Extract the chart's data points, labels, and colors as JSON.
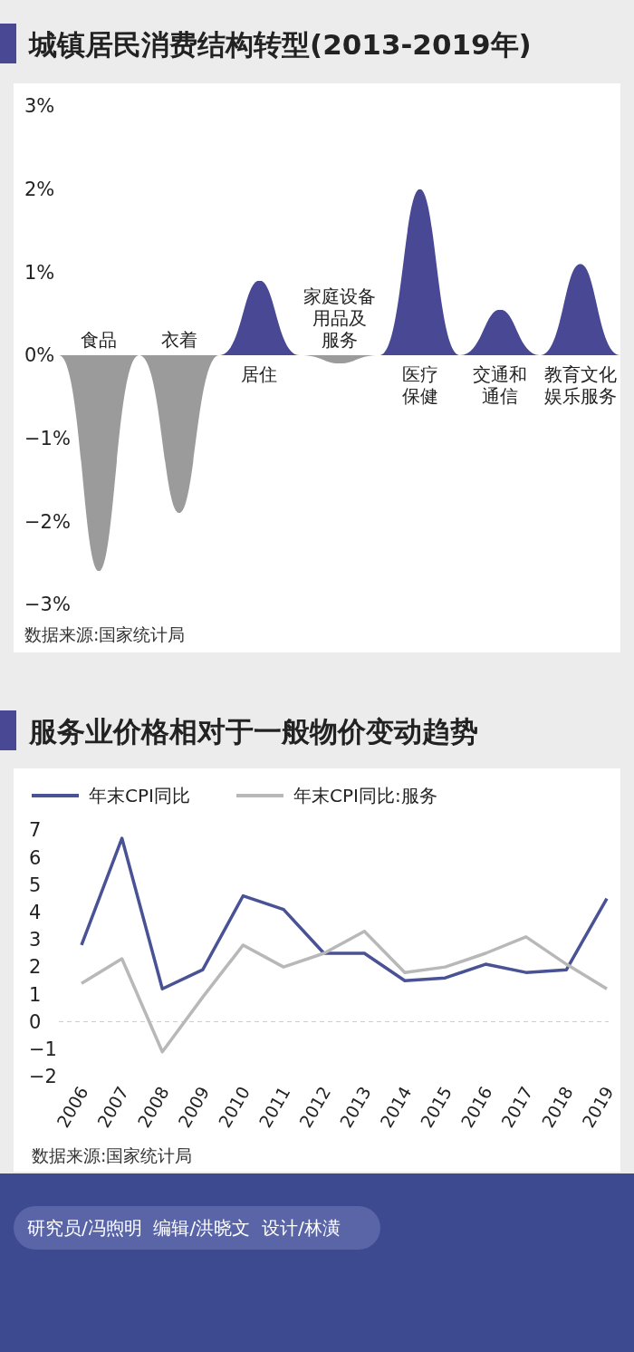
{
  "chart_data": [
    {
      "type": "bar",
      "title": "城镇居民消费结构转型(2013-2019年)",
      "categories": [
        "食品",
        "衣着",
        "居住",
        "家庭设备用品及服务",
        "医疗保健",
        "交通和通信",
        "教育文化娱乐服务"
      ],
      "values": [
        -2.6,
        -1.9,
        0.9,
        -0.1,
        2.0,
        0.55,
        1.1
      ],
      "colors": [
        "#9b9b9b",
        "#9b9b9b",
        "#484895",
        "#9b9b9b",
        "#484895",
        "#484895",
        "#484895"
      ],
      "ylim": [
        -3,
        3
      ],
      "yticks": [
        {
          "value": 3,
          "label": "3%"
        },
        {
          "value": 2,
          "label": "2%"
        },
        {
          "value": 1,
          "label": "1%"
        },
        {
          "value": 0,
          "label": "0%"
        },
        {
          "value": -1,
          "label": "−1%"
        },
        {
          "value": -2,
          "label": "−2%"
        },
        {
          "value": -3,
          "label": "−3%"
        }
      ],
      "annotations": [
        "数据来源:国家统计局"
      ]
    },
    {
      "type": "line",
      "title": "服务业价格相对于一般物价变动趋势",
      "categories": [
        "2006",
        "2007",
        "2008",
        "2009",
        "2010",
        "2011",
        "2012",
        "2013",
        "2014",
        "2015",
        "2016",
        "2017",
        "2018",
        "2019"
      ],
      "series": [
        {
          "name": "年末CPI同比",
          "color": "#4a5296",
          "values": [
            2.8,
            6.7,
            1.2,
            1.9,
            4.6,
            4.1,
            2.5,
            2.5,
            1.5,
            1.6,
            2.1,
            1.8,
            1.9,
            4.5
          ]
        },
        {
          "name": "年末CPI同比:服务",
          "color": "#b8b8b8",
          "values": [
            1.4,
            2.3,
            -1.1,
            0.9,
            2.8,
            2.0,
            2.5,
            3.3,
            1.8,
            2.0,
            2.5,
            3.1,
            2.1,
            1.2
          ]
        }
      ],
      "ylim": [
        -2,
        7
      ],
      "yticks": [
        {
          "value": -2,
          "label": "−2"
        },
        {
          "value": -1,
          "label": "−1"
        },
        0,
        1,
        2,
        3,
        4,
        5,
        6,
        7
      ],
      "ref_lines": [
        {
          "axis": "y",
          "value": 0,
          "color": "#cccccc",
          "line_style": "dashed"
        }
      ],
      "legend": "top left",
      "annotations": [
        "数据来源:国家统计局",
        "研究员/冯煦明  编辑/洪晓文  设计/林潢"
      ]
    }
  ]
}
